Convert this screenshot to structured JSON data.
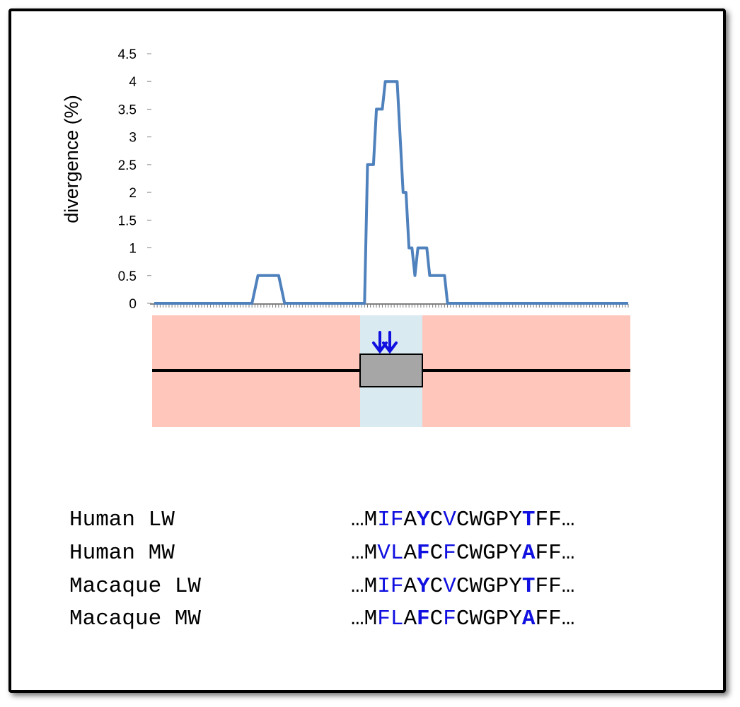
{
  "chart_data": {
    "type": "line",
    "ylabel": "divergence (%)",
    "xlabel": "",
    "ylim": [
      0,
      4.5
    ],
    "yticks": [
      "0",
      "0.5",
      "1",
      "1.5",
      "2",
      "2.5",
      "3",
      "3.5",
      "4",
      "4.5"
    ],
    "grid": false,
    "legend": "none",
    "series": [
      {
        "values": [
          0,
          0,
          0,
          0,
          0,
          0,
          0,
          0,
          0,
          0,
          0,
          0,
          0,
          0,
          0,
          0,
          0,
          0,
          0,
          0,
          0,
          0,
          0,
          0,
          0,
          0,
          0,
          0,
          0,
          0,
          0,
          0,
          0,
          0,
          0,
          0,
          0,
          0,
          0,
          0,
          0,
          0,
          0,
          0,
          0,
          0,
          0,
          0,
          0,
          0,
          0,
          0,
          0,
          0,
          0,
          0,
          0,
          0,
          0,
          0,
          0,
          0,
          0,
          0,
          0,
          0,
          0,
          0,
          0,
          0,
          0,
          0,
          0,
          0,
          0,
          0,
          0,
          0,
          0,
          0,
          0,
          0,
          0,
          0,
          0,
          0,
          0,
          0,
          0,
          0,
          0,
          0,
          0,
          0,
          0,
          0,
          0,
          0,
          0,
          0,
          0,
          0,
          0,
          0,
          0,
          0,
          0,
          0,
          0,
          0,
          0,
          0,
          0,
          0,
          0,
          0,
          0,
          0,
          0,
          0,
          0,
          0,
          0,
          0,
          0,
          0,
          0,
          0,
          0,
          0,
          0,
          0,
          0,
          0,
          0,
          0,
          0,
          0,
          0,
          0,
          0,
          0,
          0,
          0,
          0,
          0,
          0,
          0,
          0,
          0
        ]
      }
    ],
    "profile": [
      [
        0,
        0
      ],
      [
        33,
        0
      ],
      [
        35,
        0.5
      ],
      [
        42,
        0.5
      ],
      [
        44,
        0
      ],
      [
        71,
        0
      ],
      [
        72,
        2.5
      ],
      [
        74,
        2.5
      ],
      [
        75,
        3.5
      ],
      [
        77,
        3.5
      ],
      [
        78,
        4
      ],
      [
        82,
        4
      ],
      [
        84,
        2
      ],
      [
        85,
        2
      ],
      [
        86,
        1
      ],
      [
        87,
        1
      ],
      [
        88,
        0.5
      ],
      [
        89,
        1
      ],
      [
        92,
        1
      ],
      [
        93,
        0.5
      ],
      [
        98,
        0.5
      ],
      [
        99,
        0
      ],
      [
        160,
        0
      ]
    ],
    "line_color": "#4f81bd"
  },
  "gene_diagram": {
    "outer_color": "#ffc7bc",
    "region_color": "#d9eaf1",
    "exon_color": "#a6a6a6",
    "arrow_color": "#1010e0"
  },
  "alignment": {
    "rows": [
      {
        "name": "Human LW",
        "residues": [
          {
            "aa": "…M",
            "t": "n"
          },
          {
            "aa": "I",
            "t": "v"
          },
          {
            "aa": "F",
            "t": "v"
          },
          {
            "aa": "A",
            "t": "n"
          },
          {
            "aa": "Y",
            "t": "k"
          },
          {
            "aa": "C",
            "t": "n"
          },
          {
            "aa": "V",
            "t": "v"
          },
          {
            "aa": "CWGPY",
            "t": "n"
          },
          {
            "aa": "T",
            "t": "k"
          },
          {
            "aa": "FF…",
            "t": "n"
          }
        ]
      },
      {
        "name": "Human MW",
        "residues": [
          {
            "aa": "…M",
            "t": "n"
          },
          {
            "aa": "V",
            "t": "v"
          },
          {
            "aa": "L",
            "t": "v"
          },
          {
            "aa": "A",
            "t": "n"
          },
          {
            "aa": "F",
            "t": "k"
          },
          {
            "aa": "C",
            "t": "n"
          },
          {
            "aa": "F",
            "t": "v"
          },
          {
            "aa": "CWGPY",
            "t": "n"
          },
          {
            "aa": "A",
            "t": "k"
          },
          {
            "aa": "FF…",
            "t": "n"
          }
        ]
      },
      {
        "name": "Macaque LW",
        "residues": [
          {
            "aa": "…M",
            "t": "n"
          },
          {
            "aa": "I",
            "t": "v"
          },
          {
            "aa": "F",
            "t": "v"
          },
          {
            "aa": "A",
            "t": "n"
          },
          {
            "aa": "Y",
            "t": "k"
          },
          {
            "aa": "C",
            "t": "n"
          },
          {
            "aa": "V",
            "t": "v"
          },
          {
            "aa": "CWGPY",
            "t": "n"
          },
          {
            "aa": "T",
            "t": "k"
          },
          {
            "aa": "FF…",
            "t": "n"
          }
        ]
      },
      {
        "name": "Macaque MW",
        "residues": [
          {
            "aa": "…M",
            "t": "n"
          },
          {
            "aa": "F",
            "t": "v"
          },
          {
            "aa": "L",
            "t": "v"
          },
          {
            "aa": "A",
            "t": "n"
          },
          {
            "aa": "F",
            "t": "k"
          },
          {
            "aa": "C",
            "t": "n"
          },
          {
            "aa": "F",
            "t": "v"
          },
          {
            "aa": "CWGPY",
            "t": "n"
          },
          {
            "aa": "A",
            "t": "k"
          },
          {
            "aa": "FF…",
            "t": "n"
          }
        ]
      }
    ]
  }
}
